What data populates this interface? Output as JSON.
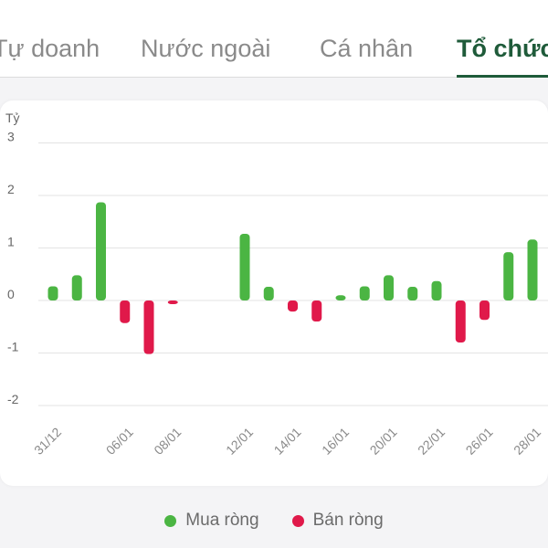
{
  "tabs": [
    {
      "label": "Tự doanh",
      "active": false
    },
    {
      "label": "Nước ngoài",
      "active": false
    },
    {
      "label": "Cá nhân",
      "active": false
    },
    {
      "label": "Tổ chức",
      "active": true
    }
  ],
  "colors": {
    "positive": "#4bb543",
    "negative": "#e0194a",
    "active_tab": "#1f5b3a"
  },
  "legend": {
    "positive_label": "Mua ròng",
    "negative_label": "Bán ròng"
  },
  "chart_data": {
    "type": "bar",
    "ylabel": "Tỷ",
    "ylim": [
      -2,
      3
    ],
    "yticks": [
      3,
      2,
      1,
      0,
      -1,
      -2
    ],
    "grid": true,
    "x_tick_labels": [
      "31/12",
      "06/01",
      "08/01",
      "12/01",
      "14/01",
      "16/01",
      "20/01",
      "22/01",
      "26/01",
      "28/01"
    ],
    "categories": [
      "31/12",
      "",
      "",
      "06/01",
      "",
      "08/01",
      "",
      "",
      "12/01",
      "",
      "14/01",
      "",
      "16/01",
      "",
      "20/01",
      "",
      "22/01",
      "",
      "26/01",
      "",
      "28/01"
    ],
    "values": [
      0.27,
      0.48,
      1.87,
      -0.43,
      -1.02,
      -0.07,
      0,
      0,
      1.27,
      0.26,
      -0.21,
      -0.4,
      0.1,
      0.27,
      0.48,
      0.26,
      0.37,
      -0.8,
      -0.37,
      0.92,
      1.16
    ],
    "legend": [
      "Mua ròng",
      "Bán ròng"
    ],
    "legend_position": "bottom"
  }
}
